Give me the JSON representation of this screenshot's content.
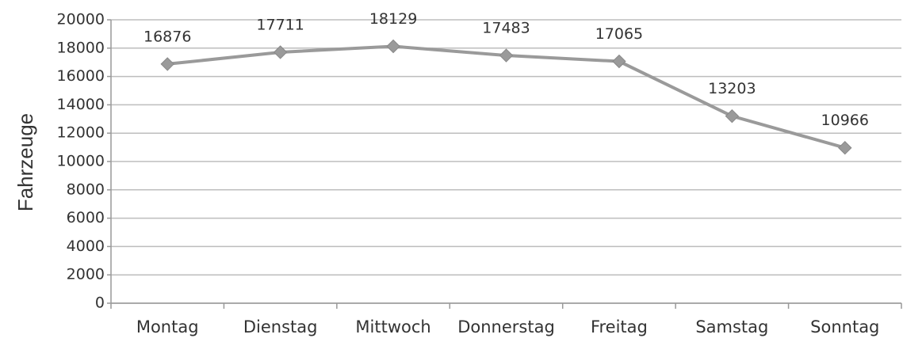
{
  "chart_data": {
    "type": "line",
    "y_label": "Fahrzeuge",
    "categories": [
      "Montag",
      "Dienstag",
      "Mittwoch",
      "Donnerstag",
      "Freitag",
      "Samstag",
      "Sonntag"
    ],
    "values": [
      16876,
      17711,
      18129,
      17483,
      17065,
      13203,
      10966
    ],
    "color": "#9a9a9a",
    "grid": true,
    "ylim": [
      0,
      20000
    ],
    "yticks": [
      0,
      2000,
      4000,
      6000,
      8000,
      10000,
      12000,
      14000,
      16000,
      18000,
      20000
    ]
  }
}
